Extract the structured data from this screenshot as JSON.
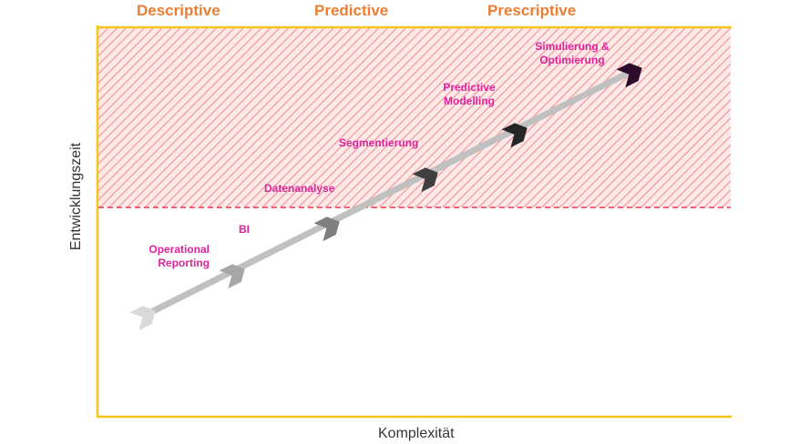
{
  "phases": [
    "Descriptive",
    "Predictive",
    "Prescriptive"
  ],
  "steps": [
    {
      "label": "Operational Reporting",
      "lines": [
        "Operational",
        "Reporting"
      ],
      "color": "#a6a6a6"
    },
    {
      "label": "BI",
      "lines": [
        "BI"
      ],
      "color": "#7f7f7f"
    },
    {
      "label": "Datenanalyse",
      "lines": [
        "Datenanalyse"
      ],
      "color": "#595959"
    },
    {
      "label": "Segmentierung",
      "lines": [
        "Segmentierung"
      ],
      "color": "#3f3f3f"
    },
    {
      "label": "Predictive Modelling",
      "lines": [
        "Predictive",
        "Modelling"
      ],
      "color": "#262626"
    },
    {
      "label": "Simulierung & Optimierung",
      "lines": [
        "Simulierung &",
        "Optimierung"
      ],
      "color": "#2d0b2d"
    }
  ],
  "axes": {
    "x": "Komplexität",
    "y": "Entwicklungszeit"
  },
  "colors": {
    "frame": "#f5c518",
    "phase_text": "#ee7d31",
    "step_text": "#e0239a",
    "hatch": "#f4a6a6",
    "threshold_line": "#e8364b",
    "arrow_shaft": "#c0c0c0",
    "arrow_start": "#d9d9d9"
  }
}
